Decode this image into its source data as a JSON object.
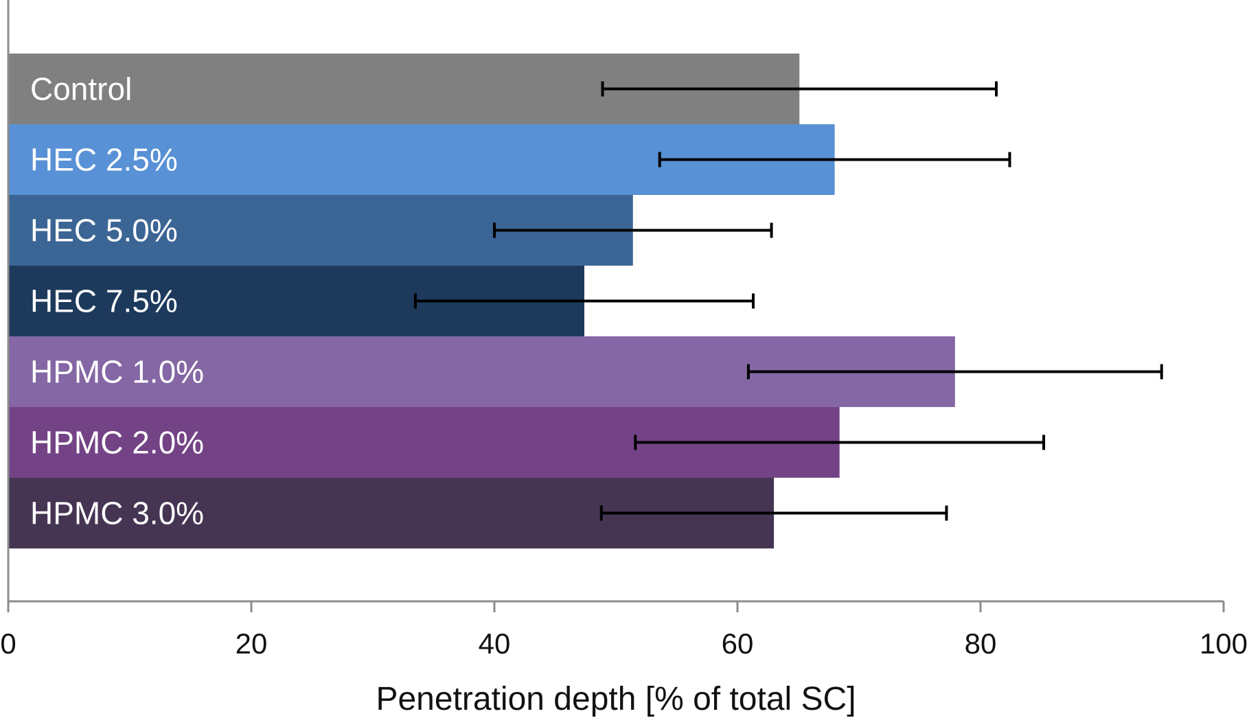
{
  "chart_data": {
    "type": "bar",
    "orientation": "horizontal",
    "categories": [
      "Control",
      "HEC 2.5%",
      "HEC 5.0%",
      "HEC 7.5%",
      "HPMC 1.0%",
      "HPMC 2.0%",
      "HPMC 3.0%"
    ],
    "values": [
      65.1,
      68.0,
      51.4,
      47.4,
      77.9,
      68.4,
      63.0
    ],
    "error": [
      16.2,
      14.4,
      11.4,
      13.9,
      17.0,
      16.8,
      14.2
    ],
    "colors": [
      "#808080",
      "#5891D5",
      "#3B6595",
      "#1D3A5D",
      "#8467A4",
      "#744386",
      "#453553"
    ],
    "xlabel": "Penetration depth [% of total SC]",
    "ylabel": "",
    "title": "",
    "xlim": [
      0,
      100
    ],
    "xticks": [
      0,
      20,
      40,
      60,
      80,
      100
    ],
    "xtick_labels": [
      "0",
      "20",
      "40",
      "60",
      "80",
      "100"
    ],
    "grid": false,
    "legend": "none",
    "labels_inside_bars": true
  }
}
